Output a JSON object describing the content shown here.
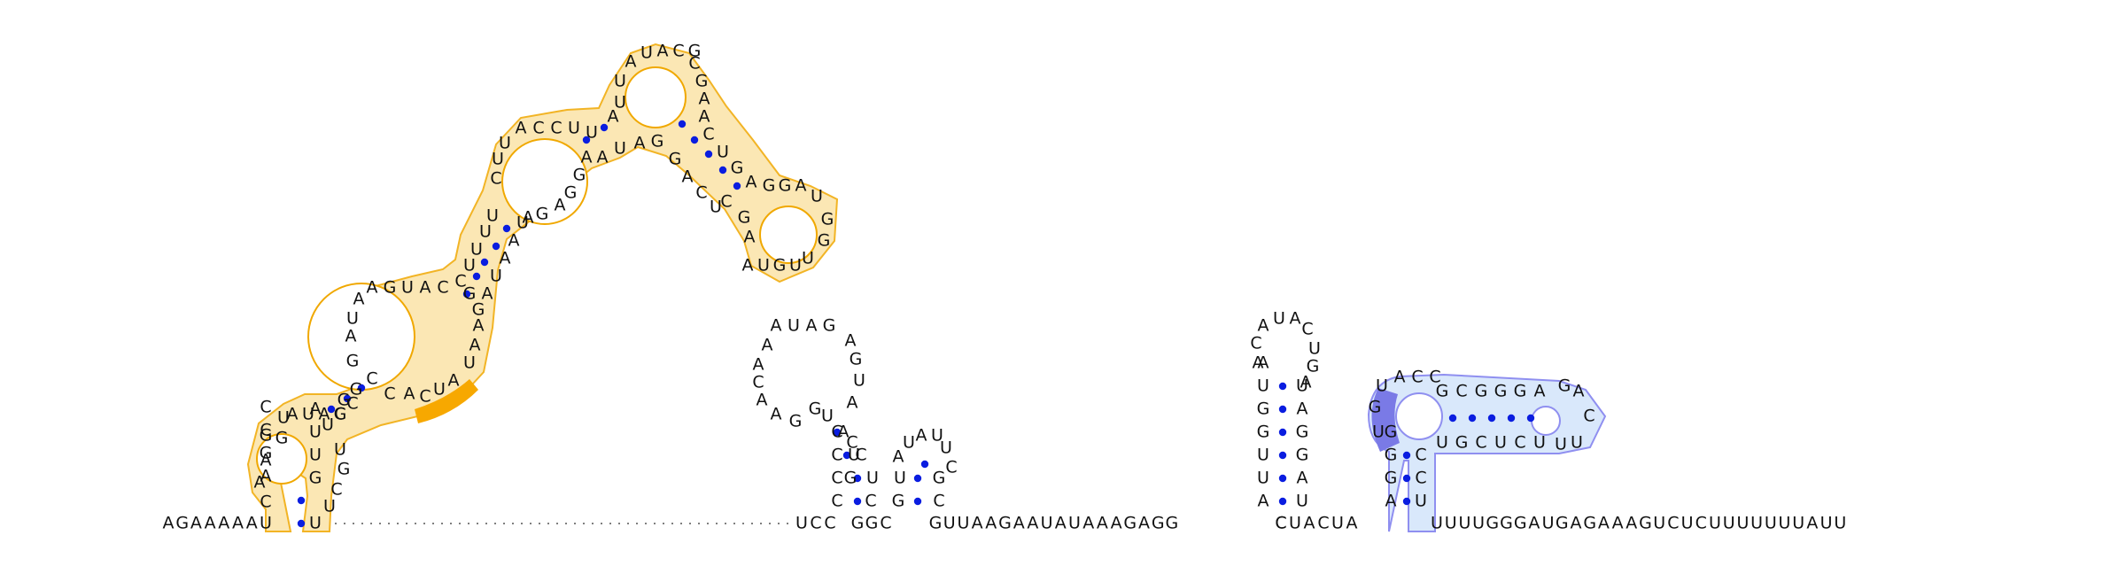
{
  "diagram": {
    "sequence_5prime": "AGAAAAA",
    "linker_a": "UCC",
    "linker_b": "GGC",
    "linker_c": "GUUAAGAAUAUAAAGAGG",
    "linker_d": "CUACUA",
    "sequence_3prime": "UUUUGGGAUGAGAAAGUCUCUUUUUUUAUU",
    "colors": {
      "orange_region": "#f7a800",
      "orange_fill": "#fbe3a8",
      "blue_region": "#8f8ff0",
      "blue_fill": "#d9e8fb",
      "blue_dark": "#7a7ae6",
      "pair_dot": "#0a1de0"
    }
  }
}
